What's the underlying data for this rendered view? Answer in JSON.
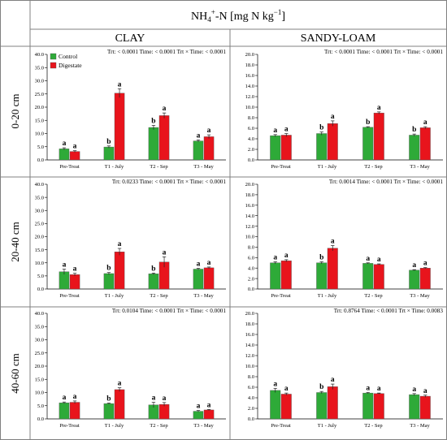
{
  "figure": {
    "title_main": "NH",
    "title_sub": "4",
    "title_sup": "+",
    "title_rest": "-N [mg N kg",
    "title_exp": "−1",
    "title_end": "]",
    "col_headers": [
      "CLAY",
      "SANDY-LOAM"
    ],
    "row_headers": [
      "0-20 cm",
      "20-40 cm",
      "40-60 cm"
    ],
    "legend": [
      "Control",
      "Digestate"
    ],
    "colors": {
      "control": "#2eaa38",
      "digestate": "#e8141c",
      "frame": "#808080"
    }
  },
  "chart_data": [
    {
      "type": "bar",
      "panel": "clay-0-20",
      "categories": [
        "Pre-Treat",
        "T1 - July",
        "T2 - Sep",
        "T3 - May"
      ],
      "ylim": [
        0,
        40
      ],
      "yticks": [
        "0.0",
        "5.0",
        "10.0",
        "15.0",
        "20.0",
        "25.0",
        "30.0",
        "35.0",
        "40.0"
      ],
      "stats_text": "Trt: < 0.0001  Time: < 0.0001  Trt × Time: < 0.0001",
      "legend_shown": true,
      "series": [
        {
          "name": "Control",
          "values": [
            4.2,
            4.9,
            12.3,
            7.2
          ],
          "errors": [
            0.4,
            0.4,
            0.8,
            0.4
          ],
          "letters": [
            "a",
            "b",
            "b",
            "a"
          ]
        },
        {
          "name": "Digestate",
          "values": [
            3.2,
            25.3,
            16.8,
            8.8
          ],
          "errors": [
            0.3,
            1.7,
            1.0,
            0.7
          ],
          "letters": [
            "a",
            "a",
            "a",
            "a"
          ]
        }
      ]
    },
    {
      "type": "bar",
      "panel": "sandy-0-20",
      "categories": [
        "Pre-Treat",
        "T1 - July",
        "T2 - Sep",
        "T3 - May"
      ],
      "ylim": [
        0,
        20
      ],
      "yticks": [
        "0.0",
        "2.0",
        "4.0",
        "6.0",
        "8.0",
        "10.0",
        "12.0",
        "14.0",
        "16.0",
        "18.0",
        "20.0"
      ],
      "stats_text": "Trt: < 0.0001  Time: < 0.0001  Trt × Time: < 0.0001",
      "legend_shown": false,
      "series": [
        {
          "name": "Control",
          "values": [
            4.6,
            5.0,
            6.2,
            4.7
          ],
          "errors": [
            0.2,
            0.3,
            0.1,
            0.2
          ],
          "letters": [
            "a",
            "b",
            "b",
            "b"
          ]
        },
        {
          "name": "Digestate",
          "values": [
            4.7,
            6.9,
            8.9,
            6.1
          ],
          "errors": [
            0.3,
            0.5,
            0.2,
            0.2
          ],
          "letters": [
            "a",
            "a",
            "a",
            "a"
          ]
        }
      ]
    },
    {
      "type": "bar",
      "panel": "clay-20-40",
      "categories": [
        "Pre-Treat",
        "T1 - July",
        "T2 - Sep",
        "T3 - May"
      ],
      "ylim": [
        0,
        40
      ],
      "yticks": [
        "0.0",
        "5.0",
        "10.0",
        "15.0",
        "20.0",
        "25.0",
        "30.0",
        "35.0",
        "40.0"
      ],
      "stats_text": "Trt: 0.0233  Time: < 0.0001  Trt × Time: < 0.0001",
      "legend_shown": false,
      "series": [
        {
          "name": "Control",
          "values": [
            6.6,
            5.9,
            5.8,
            7.6
          ],
          "errors": [
            1.0,
            0.4,
            0.3,
            0.3
          ],
          "letters": [
            "a",
            "b",
            "b",
            "a"
          ]
        },
        {
          "name": "Digestate",
          "values": [
            5.5,
            14.2,
            10.3,
            8.1
          ],
          "errors": [
            0.5,
            1.3,
            2.0,
            0.3
          ],
          "letters": [
            "a",
            "a",
            "a",
            "a"
          ]
        }
      ]
    },
    {
      "type": "bar",
      "panel": "sandy-20-40",
      "categories": [
        "Pre-Treat",
        "T1 - July",
        "T2 - Sep",
        "T3 - May"
      ],
      "ylim": [
        0,
        20
      ],
      "yticks": [
        "0.0",
        "2.0",
        "4.0",
        "6.0",
        "8.0",
        "10.0",
        "12.0",
        "14.0",
        "16.0",
        "18.0",
        "20.0"
      ],
      "stats_text": "Trt: 0.0014  Time: < 0.0001  Trt × Time: < 0.0001",
      "legend_shown": false,
      "series": [
        {
          "name": "Control",
          "values": [
            5.0,
            5.0,
            4.9,
            3.6
          ],
          "errors": [
            0.2,
            0.2,
            0.1,
            0.1
          ],
          "letters": [
            "a",
            "b",
            "a",
            "a"
          ]
        },
        {
          "name": "Digestate",
          "values": [
            5.4,
            7.8,
            4.7,
            4.0
          ],
          "errors": [
            0.2,
            0.5,
            0.1,
            0.1
          ],
          "letters": [
            "a",
            "a",
            "a",
            "a"
          ]
        }
      ]
    },
    {
      "type": "bar",
      "panel": "clay-40-60",
      "categories": [
        "Pre-Treat",
        "T1 - July",
        "T2 - Sep",
        "T3 - May"
      ],
      "ylim": [
        0,
        40
      ],
      "yticks": [
        "0.0",
        "5.0",
        "10.0",
        "15.0",
        "20.0",
        "25.0",
        "30.0",
        "35.0",
        "40.0"
      ],
      "stats_text": "Trt: 0.0104  Time: < 0.0001  Trt × Time: < 0.0001",
      "legend_shown": false,
      "series": [
        {
          "name": "Control",
          "values": [
            6.1,
            5.8,
            5.3,
            2.9
          ],
          "errors": [
            0.3,
            0.2,
            1.0,
            0.3
          ],
          "letters": [
            "a",
            "b",
            "a",
            "a"
          ]
        },
        {
          "name": "Digestate",
          "values": [
            6.3,
            11.1,
            5.5,
            3.4
          ],
          "errors": [
            0.5,
            0.7,
            0.7,
            0.2
          ],
          "letters": [
            "a",
            "a",
            "a",
            "a"
          ]
        }
      ]
    },
    {
      "type": "bar",
      "panel": "sandy-40-60",
      "categories": [
        "Pre-Treat",
        "T1 - July",
        "T2 - Sep",
        "T3 - May"
      ],
      "ylim": [
        0,
        20
      ],
      "yticks": [
        "0.0",
        "2.0",
        "4.0",
        "6.0",
        "8.0",
        "10.0",
        "12.0",
        "14.0",
        "16.0",
        "18.0",
        "20.0"
      ],
      "stats_text": "Trt: 0.8764  Time: < 0.0001  Trt × Time: 0.0083",
      "legend_shown": false,
      "series": [
        {
          "name": "Control",
          "values": [
            5.4,
            5.0,
            4.9,
            4.6
          ],
          "errors": [
            0.4,
            0.2,
            0.1,
            0.2
          ],
          "letters": [
            "a",
            "b",
            "a",
            "a"
          ]
        },
        {
          "name": "Digestate",
          "values": [
            4.7,
            6.1,
            4.8,
            4.3
          ],
          "errors": [
            0.2,
            0.5,
            0.1,
            0.2
          ],
          "letters": [
            "a",
            "a",
            "a",
            "a"
          ]
        }
      ]
    }
  ]
}
